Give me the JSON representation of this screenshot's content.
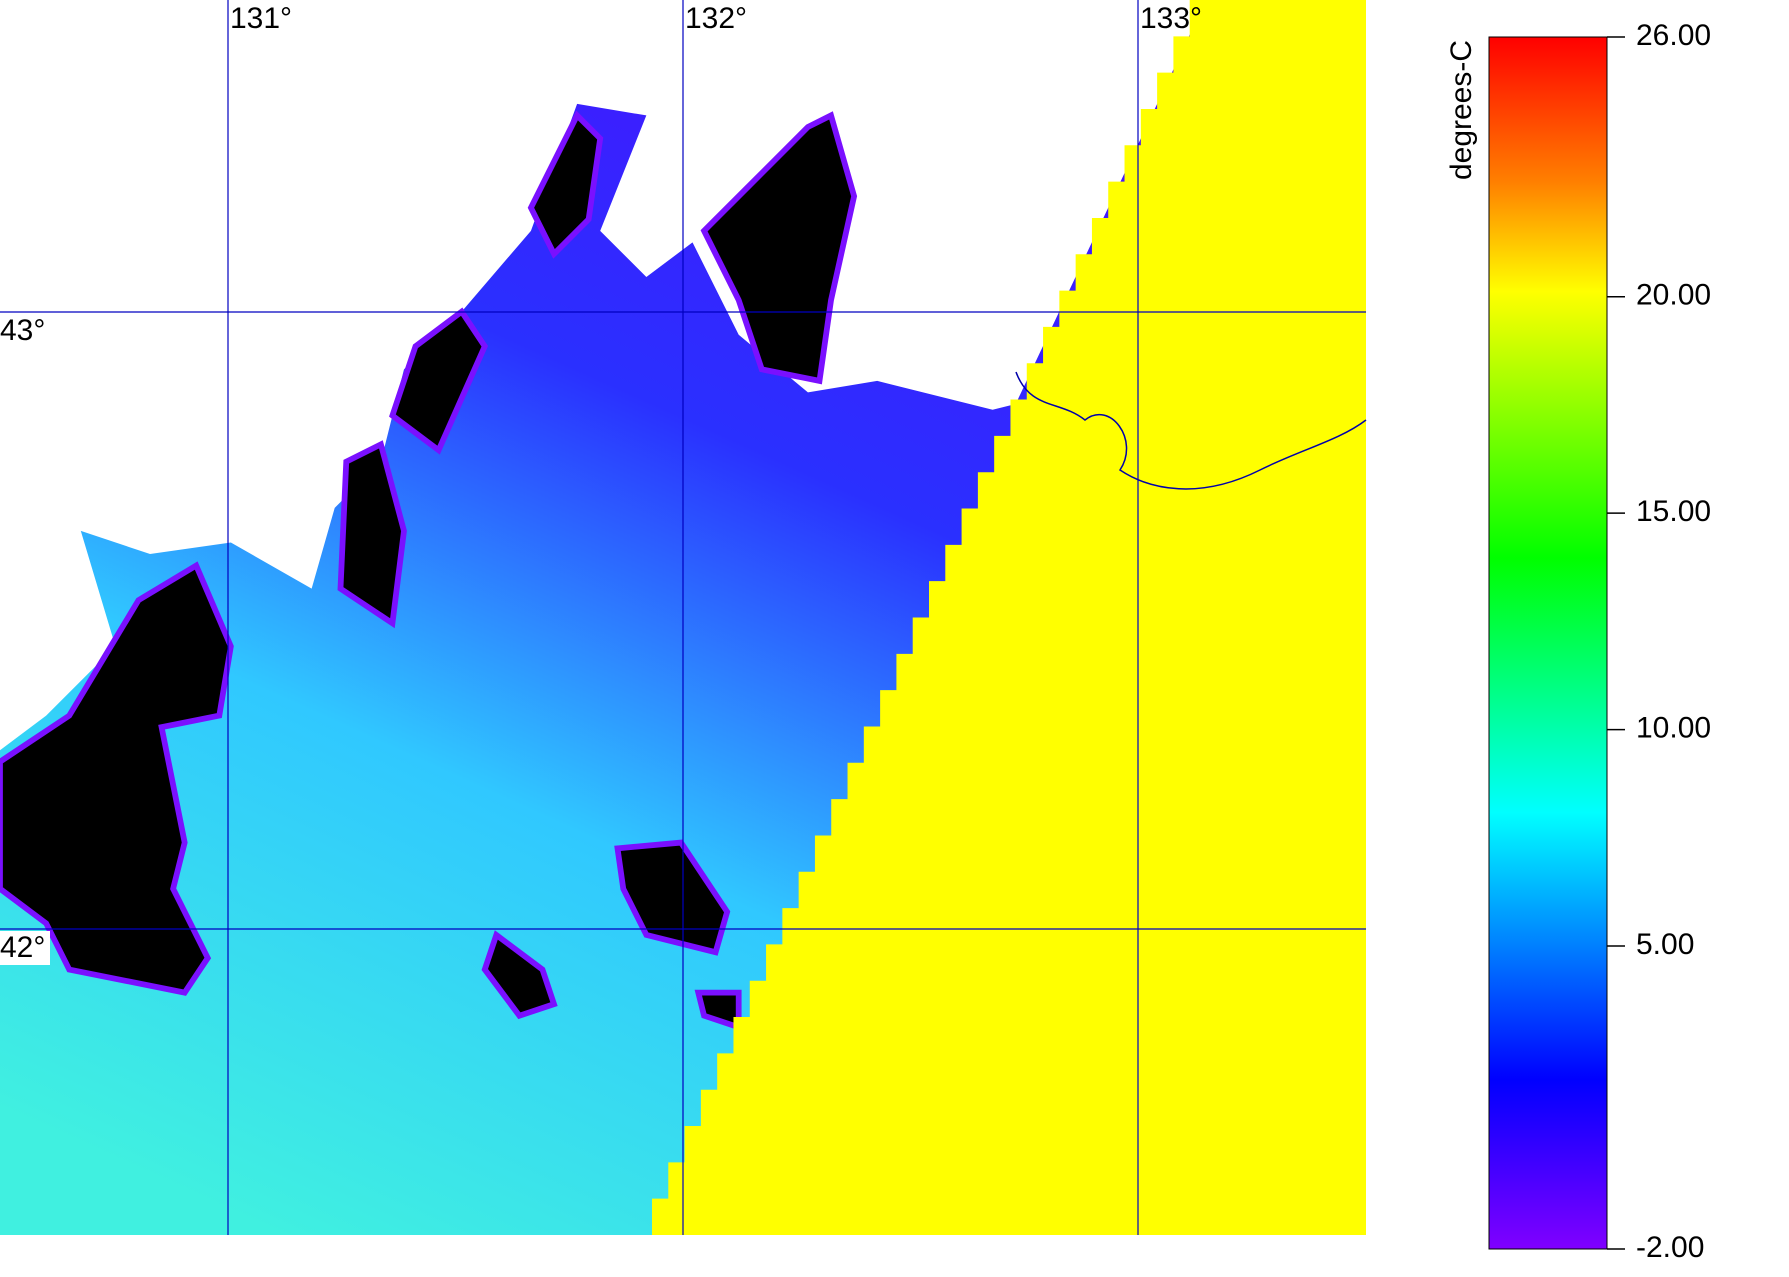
{
  "map": {
    "lon_ticks": [
      {
        "value": 131,
        "label": "131°"
      },
      {
        "value": 132,
        "label": "132°"
      },
      {
        "value": 133,
        "label": "133°"
      }
    ],
    "lat_ticks": [
      {
        "value": 43,
        "label": "43°"
      },
      {
        "value": 42,
        "label": "42°"
      }
    ]
  },
  "colorbar": {
    "label": "degrees-C",
    "range": [
      -2,
      26
    ],
    "ticks": [
      {
        "value": 26,
        "label": "26.00"
      },
      {
        "value": 20,
        "label": "20.00"
      },
      {
        "value": 15,
        "label": "15.00"
      },
      {
        "value": 10,
        "label": "10.00"
      },
      {
        "value": 5,
        "label": "5.00"
      },
      {
        "value": -2,
        "label": "-2.00"
      }
    ]
  }
}
